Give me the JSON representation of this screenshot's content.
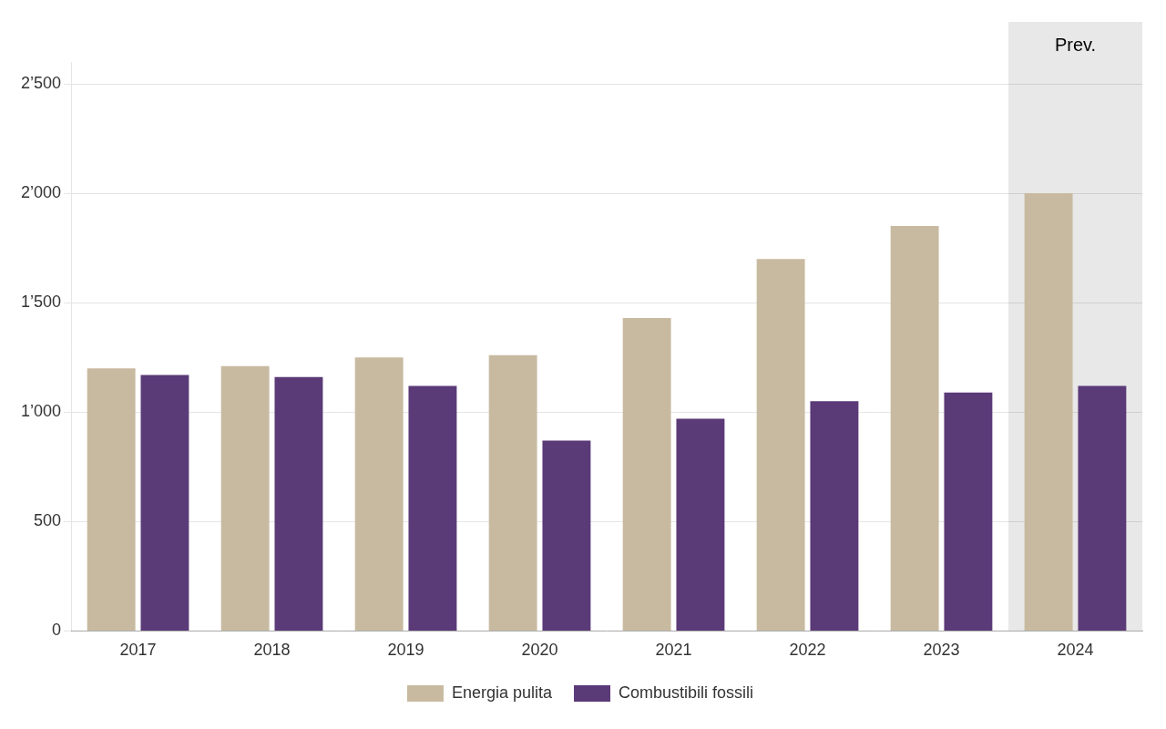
{
  "chart_data": {
    "type": "bar",
    "categories": [
      "2017",
      "2018",
      "2019",
      "2020",
      "2021",
      "2022",
      "2023",
      "2024"
    ],
    "series": [
      {
        "name": "Energia pulita",
        "color": "#C8BAA0",
        "values": [
          1200,
          1210,
          1250,
          1260,
          1430,
          1700,
          1850,
          2000
        ]
      },
      {
        "name": "Combustibili fossili",
        "color": "#5B3A78",
        "values": [
          1170,
          1160,
          1120,
          870,
          970,
          1050,
          1090,
          1120
        ]
      }
    ],
    "ylim": [
      0,
      2600
    ],
    "yticks": [
      0,
      500,
      {
        "value": 1000,
        "label": "1’000"
      },
      {
        "value": 1500,
        "label": "1’500"
      },
      {
        "value": 2000,
        "label": "2’000"
      },
      {
        "value": 2500,
        "label": "2’500"
      }
    ],
    "grid": true,
    "legend": "bottom",
    "annotations": [
      {
        "text": "Prev.",
        "x": "2024",
        "color": "#E8E8E8"
      }
    ]
  }
}
